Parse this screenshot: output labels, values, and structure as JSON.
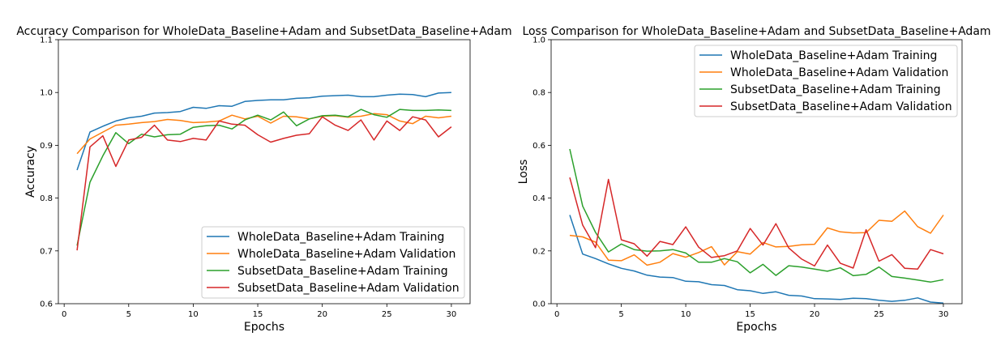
{
  "chart_data": [
    {
      "type": "line",
      "title": "Accuracy Comparison for WholeData_Baseline+Adam and SubsetData_Baseline+Adam",
      "xlabel": "Epochs",
      "ylabel": "Accuracy",
      "xlim": [
        -0.45,
        31.45
      ],
      "ylim": [
        0.6,
        1.1
      ],
      "xticks": [
        0,
        5,
        10,
        15,
        20,
        25,
        30
      ],
      "yticks": [
        0.6,
        0.7,
        0.8,
        0.9,
        1.0,
        1.1
      ],
      "ytick_labels": [
        "0.6",
        "0.7",
        "0.8",
        "0.9",
        "1.0",
        "1.1"
      ],
      "grid": false,
      "legend_position": "lower-right",
      "x": [
        1,
        2,
        3,
        4,
        5,
        6,
        7,
        8,
        9,
        10,
        11,
        12,
        13,
        14,
        15,
        16,
        17,
        18,
        19,
        20,
        21,
        22,
        23,
        24,
        25,
        26,
        27,
        28,
        29,
        30
      ],
      "series": [
        {
          "name": "WholeData_Baseline+Adam Training",
          "color": "#1f77b4",
          "values": [
            0.853,
            0.925,
            0.936,
            0.946,
            0.952,
            0.955,
            0.961,
            0.962,
            0.964,
            0.972,
            0.97,
            0.975,
            0.974,
            0.983,
            0.985,
            0.986,
            0.986,
            0.989,
            0.99,
            0.993,
            0.994,
            0.995,
            0.992,
            0.992,
            0.995,
            0.997,
            0.996,
            0.992,
            0.999,
            1.0
          ]
        },
        {
          "name": "WholeData_Baseline+Adam Validation",
          "color": "#ff7f0e",
          "values": [
            0.884,
            0.912,
            0.925,
            0.938,
            0.94,
            0.943,
            0.945,
            0.949,
            0.947,
            0.943,
            0.944,
            0.946,
            0.957,
            0.95,
            0.955,
            0.942,
            0.955,
            0.954,
            0.95,
            0.955,
            0.956,
            0.953,
            0.955,
            0.96,
            0.958,
            0.946,
            0.941,
            0.955,
            0.952,
            0.955
          ]
        },
        {
          "name": "SubsetData_Baseline+Adam Training",
          "color": "#2ca02c",
          "values": [
            0.71,
            0.83,
            0.88,
            0.924,
            0.903,
            0.921,
            0.916,
            0.92,
            0.921,
            0.934,
            0.937,
            0.938,
            0.931,
            0.948,
            0.957,
            0.948,
            0.963,
            0.937,
            0.95,
            0.956,
            0.957,
            0.954,
            0.968,
            0.958,
            0.953,
            0.968,
            0.966,
            0.966,
            0.967,
            0.966
          ]
        },
        {
          "name": "SubsetData_Baseline+Adam Validation",
          "color": "#d62728",
          "values": [
            0.701,
            0.897,
            0.918,
            0.86,
            0.91,
            0.915,
            0.938,
            0.91,
            0.907,
            0.913,
            0.91,
            0.946,
            0.94,
            0.938,
            0.92,
            0.906,
            0.913,
            0.919,
            0.922,
            0.954,
            0.938,
            0.928,
            0.948,
            0.91,
            0.946,
            0.928,
            0.954,
            0.948,
            0.916,
            0.935
          ]
        }
      ]
    },
    {
      "type": "line",
      "title": "Loss Comparison for WholeData_Baseline+Adam and SubsetData_Baseline+Adam",
      "xlabel": "Epochs",
      "ylabel": "Loss",
      "xlim": [
        -0.45,
        31.45
      ],
      "ylim": [
        0.0,
        1.0
      ],
      "xticks": [
        0,
        5,
        10,
        15,
        20,
        25,
        30
      ],
      "yticks": [
        0.0,
        0.2,
        0.4,
        0.6,
        0.8,
        1.0
      ],
      "ytick_labels": [
        "0.0",
        "0.2",
        "0.4",
        "0.6",
        "0.8",
        "1.0"
      ],
      "grid": false,
      "legend_position": "upper-right",
      "x": [
        1,
        2,
        3,
        4,
        5,
        6,
        7,
        8,
        9,
        10,
        11,
        12,
        13,
        14,
        15,
        16,
        17,
        18,
        19,
        20,
        21,
        22,
        23,
        24,
        25,
        26,
        27,
        28,
        29,
        30
      ],
      "series": [
        {
          "name": "WholeData_Baseline+Adam Training",
          "color": "#1f77b4",
          "values": [
            0.336,
            0.188,
            0.171,
            0.151,
            0.134,
            0.124,
            0.108,
            0.101,
            0.099,
            0.085,
            0.083,
            0.072,
            0.069,
            0.053,
            0.049,
            0.039,
            0.045,
            0.032,
            0.029,
            0.019,
            0.018,
            0.016,
            0.021,
            0.019,
            0.013,
            0.009,
            0.013,
            0.022,
            0.006,
            0.002
          ]
        },
        {
          "name": "WholeData_Baseline+Adam Validation",
          "color": "#ff7f0e",
          "values": [
            0.259,
            0.253,
            0.233,
            0.165,
            0.163,
            0.185,
            0.146,
            0.157,
            0.19,
            0.176,
            0.194,
            0.216,
            0.147,
            0.197,
            0.188,
            0.232,
            0.215,
            0.217,
            0.223,
            0.225,
            0.287,
            0.272,
            0.268,
            0.269,
            0.316,
            0.312,
            0.351,
            0.292,
            0.267,
            0.336
          ]
        },
        {
          "name": "SubsetData_Baseline+Adam Training",
          "color": "#2ca02c",
          "values": [
            0.586,
            0.37,
            0.27,
            0.196,
            0.226,
            0.205,
            0.199,
            0.2,
            0.205,
            0.192,
            0.157,
            0.157,
            0.171,
            0.159,
            0.117,
            0.149,
            0.107,
            0.144,
            0.139,
            0.131,
            0.123,
            0.136,
            0.106,
            0.111,
            0.139,
            0.103,
            0.097,
            0.09,
            0.082,
            0.091
          ]
        },
        {
          "name": "SubsetData_Baseline+Adam Validation",
          "color": "#d62728",
          "values": [
            0.478,
            0.298,
            0.212,
            0.471,
            0.242,
            0.227,
            0.18,
            0.236,
            0.224,
            0.291,
            0.214,
            0.175,
            0.182,
            0.2,
            0.285,
            0.222,
            0.303,
            0.211,
            0.169,
            0.143,
            0.222,
            0.153,
            0.135,
            0.28,
            0.161,
            0.186,
            0.134,
            0.131,
            0.205,
            0.189
          ]
        }
      ]
    }
  ]
}
